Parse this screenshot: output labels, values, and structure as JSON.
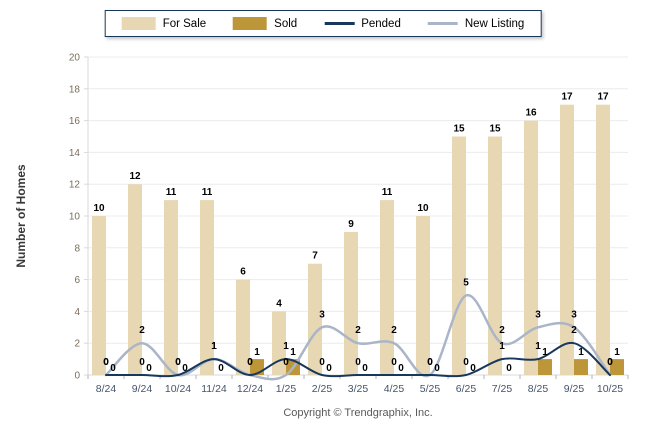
{
  "chart_data": {
    "type": "combo-bar-line",
    "title": "",
    "xlabel": "",
    "ylabel": "Number of Homes",
    "ylim": [
      0,
      20
    ],
    "ytick_step": 2,
    "grid": true,
    "legend_position": "top-center",
    "categories": [
      "8/24",
      "9/24",
      "10/24",
      "11/24",
      "12/24",
      "1/25",
      "2/25",
      "3/25",
      "4/25",
      "5/25",
      "6/25",
      "7/25",
      "8/25",
      "9/25",
      "10/25"
    ],
    "series": [
      {
        "name": "For Sale",
        "type": "bar",
        "color": "#e8d7b3",
        "values": [
          10,
          12,
          11,
          11,
          6,
          4,
          7,
          9,
          11,
          10,
          15,
          15,
          16,
          17,
          17
        ]
      },
      {
        "name": "Sold",
        "type": "bar",
        "color": "#be963a",
        "values": [
          0,
          0,
          0,
          0,
          1,
          1,
          0,
          0,
          0,
          0,
          0,
          0,
          1,
          1,
          1
        ]
      },
      {
        "name": "Pended",
        "type": "line",
        "color": "#17375d",
        "values": [
          0,
          0,
          0,
          1,
          0,
          1,
          0,
          0,
          0,
          0,
          0,
          1,
          1,
          2,
          0
        ]
      },
      {
        "name": "New Listing",
        "type": "line",
        "color": "#aab5c8",
        "values": [
          0,
          2,
          0,
          1,
          0,
          0,
          3,
          2,
          2,
          0,
          5,
          2,
          3,
          3,
          0
        ]
      }
    ]
  },
  "colors": {
    "grid": "#ececec",
    "axis": "#d9d9d9",
    "tick_mark": "#b3b3b3",
    "x_tick_label": "#44546a",
    "y_tick_label": "#7a6e5e",
    "data_label": "#000000",
    "legend_border": "#17365c"
  },
  "footer": {
    "text": "Copyright © Trendgraphix, Inc."
  }
}
